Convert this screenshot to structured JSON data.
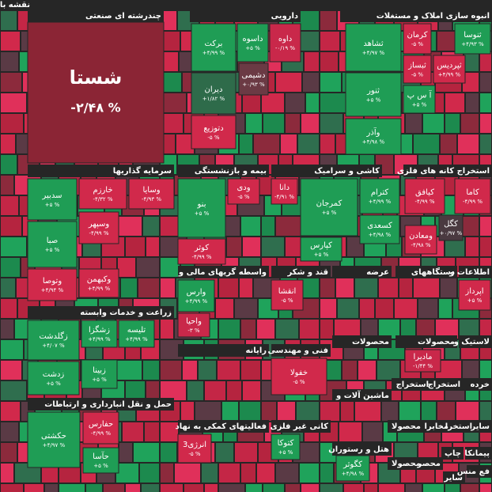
{
  "title": "نقشه بازار",
  "sectors": [
    {
      "name": "چندرشته ای صنعتی",
      "tiles": [
        {
          "symbol": "شستا",
          "change": "-۲/۴۸ %",
          "color": "#8b2535"
        }
      ]
    },
    {
      "name": "دارویی",
      "tiles": [
        {
          "symbol": "برکت",
          "change": "+۴/۹۹ %",
          "color": "#1f9d55"
        },
        {
          "symbol": "داسوه",
          "change": "+۵ %",
          "color": "#1f9d55"
        },
        {
          "symbol": "داوه",
          "change": "-۰/۱۹ %",
          "color": "#c9284a"
        },
        {
          "symbol": "دشیمی",
          "change": "+۰/۹۳ %",
          "color": "#6b3a44"
        },
        {
          "symbol": "دیران",
          "change": "+۱/۸۲ %",
          "color": "#2e6b4a"
        },
        {
          "symbol": "دتوزیع",
          "change": "-۵ %",
          "color": "#d1294b"
        }
      ]
    },
    {
      "name": "انبوه سازی املاک و مستغلات",
      "tiles": [
        {
          "symbol": "ثشاهد",
          "change": "+۴/۹۷ %",
          "color": "#1f9d55"
        },
        {
          "symbol": "کرمان",
          "change": "-۵ %",
          "color": "#d1294b"
        },
        {
          "symbol": "ثنوسا",
          "change": "+۴/۹۳ %",
          "color": "#1f9d55"
        },
        {
          "symbol": "ثبساز",
          "change": "-۵ %",
          "color": "#d1294b"
        },
        {
          "symbol": "ثپردیس",
          "change": "+۴/۹۹ %",
          "color": "#d1294b"
        },
        {
          "symbol": "ثنور",
          "change": "+۵ %",
          "color": "#1f9d55"
        },
        {
          "symbol": "آ س پ",
          "change": "+۵ %",
          "color": "#1f9d55"
        },
        {
          "symbol": "وآذر",
          "change": "+۴/۹۸ %",
          "color": "#1f9d55"
        }
      ]
    },
    {
      "name": "سرمایه گذاریها",
      "tiles": [
        {
          "symbol": "سدبیر",
          "change": "+۵ %",
          "color": "#1f9d55"
        },
        {
          "symbol": "خارزم",
          "change": "-۴/۳۲ %",
          "color": "#d1294b"
        },
        {
          "symbol": "وسایا",
          "change": "-۴/۹۳ %",
          "color": "#d1294b"
        },
        {
          "symbol": "صبا",
          "change": "+۵ %",
          "color": "#1f9d55"
        },
        {
          "symbol": "وسپهر",
          "change": "-۴/۹۹ %",
          "color": "#d1294b"
        },
        {
          "symbol": "وتوصا",
          "change": "+۴/۹۴ %",
          "color": "#d1294b"
        },
        {
          "symbol": "وکبهمن",
          "change": "+۴/۹۹ %",
          "color": "#d1294b"
        }
      ]
    },
    {
      "name": "بیمه و بازنشستگی",
      "tiles": [
        {
          "symbol": "بنو",
          "change": "+۵ %",
          "color": "#1f9d55"
        },
        {
          "symbol": "ودی",
          "change": "-۵ %",
          "color": "#d1294b"
        },
        {
          "symbol": "کوثر",
          "change": "-۴/۹۹ %",
          "color": "#d1294b"
        }
      ]
    },
    {
      "name": "کاشی و سرامیک",
      "tiles": [
        {
          "symbol": "دانا",
          "change": "-۴/۹۱ %",
          "color": "#d1294b"
        },
        {
          "symbol": "کمرجان",
          "change": "+۵ %",
          "color": "#1f9d55"
        },
        {
          "symbol": "کترام",
          "change": "+۴/۹۹ %",
          "color": "#1f9d55"
        },
        {
          "symbol": "کسعدی",
          "change": "+۴/۹۸ %",
          "color": "#1f9d55"
        },
        {
          "symbol": "کپارس",
          "change": "+۵ %",
          "color": "#1f9d55"
        }
      ]
    },
    {
      "name": "استخراج کانه های فلزی",
      "tiles": [
        {
          "symbol": "کیافق",
          "change": "-۴/۹۹ %",
          "color": "#d1294b"
        },
        {
          "symbol": "کاما",
          "change": "-۴/۹۹ %",
          "color": "#d1294b"
        },
        {
          "symbol": "کگل",
          "change": "+۰/۹۷ %",
          "color": "#4a3a40"
        },
        {
          "symbol": "ومعادن",
          "change": "-۴/۹۸ %",
          "color": "#d1294b"
        }
      ]
    },
    {
      "name": "واسطه گریهای مالی و",
      "tiles": [
        {
          "symbol": "وارس",
          "change": "+۴/۹۹ %",
          "color": "#1f9d55"
        },
        {
          "symbol": "واحیا",
          "change": "-۳ %",
          "color": "#c9284a"
        }
      ]
    },
    {
      "name": "قند و شکر",
      "tiles": [
        {
          "symbol": "انقشا",
          "change": "-۵ %",
          "color": "#d1294b"
        }
      ]
    },
    {
      "name": "عرضه",
      "tiles": []
    },
    {
      "name": "دستگاههای",
      "tiles": []
    },
    {
      "name": "اطلاعات و",
      "tiles": [
        {
          "symbol": "اپرداز",
          "change": "+۵ %",
          "color": "#d1294b"
        }
      ]
    },
    {
      "name": "زراعت و خدمات وابسته",
      "tiles": [
        {
          "symbol": "زگلدشت",
          "change": "+۴/۰۷ %",
          "color": "#1f9d55"
        },
        {
          "symbol": "زشگزا",
          "change": "+۴/۹۹ %",
          "color": "#1f9d55"
        },
        {
          "symbol": "تلیسه",
          "change": "+۴/۹۹ %",
          "color": "#1f9d55"
        },
        {
          "symbol": "زدشت",
          "change": "+۵ %",
          "color": "#1f9d55"
        },
        {
          "symbol": "زبینا",
          "change": "+۵ %",
          "color": "#1f9d55"
        }
      ]
    },
    {
      "name": "رایانه",
      "tiles": []
    },
    {
      "name": "فنی و مهندسی",
      "tiles": [
        {
          "symbol": "خفولا",
          "change": "-۵ %",
          "color": "#d1294b"
        }
      ]
    },
    {
      "name": "محصولات",
      "tiles": []
    },
    {
      "name": "محصولات",
      "tiles": [
        {
          "symbol": "مادیرا",
          "change": "-۱/۴۴ %",
          "color": "#c9284a"
        }
      ]
    },
    {
      "name": "لاستیک و",
      "tiles": []
    },
    {
      "name": "ماشین آلات و",
      "tiles": []
    },
    {
      "name": "استخراج",
      "tiles": []
    },
    {
      "name": "استخراج",
      "tiles": []
    },
    {
      "name": "خرده",
      "tiles": []
    },
    {
      "name": "حمل و نقل انبارداری و ارتباطات",
      "tiles": [
        {
          "symbol": "حکشتی",
          "change": "+۴/۹۷ %",
          "color": "#1f9d55"
        },
        {
          "symbol": "حفارس",
          "change": "-۴/۹۹ %",
          "color": "#d1294b"
        },
        {
          "symbol": "حآسا",
          "change": "+۵ %",
          "color": "#1f9d55"
        }
      ]
    },
    {
      "name": "فعالیتهای کمکی به نهاد",
      "tiles": [
        {
          "symbol": "انرژی3",
          "change": "-۵ %",
          "color": "#d1294b"
        }
      ]
    },
    {
      "name": "کانی غیر فلزی",
      "tiles": [
        {
          "symbol": "کتوکا",
          "change": "+۵ %",
          "color": "#1f9d55"
        }
      ]
    },
    {
      "name": "هتل و رستوران",
      "tiles": [
        {
          "symbol": "کگوثر",
          "change": "+۴/۹۸ %",
          "color": "#1f9d55"
        }
      ]
    },
    {
      "name": "محصولا",
      "tiles": []
    },
    {
      "name": "مخابرا",
      "tiles": []
    },
    {
      "name": "استخرا",
      "tiles": []
    },
    {
      "name": "سایر",
      "tiles": []
    },
    {
      "name": "چاپ",
      "tiles": []
    },
    {
      "name": "پیمانکا",
      "tiles": []
    },
    {
      "name": "محصولا",
      "tiles": []
    },
    {
      "name": "محصر",
      "tiles": []
    },
    {
      "name": "سایر",
      "tiles": []
    },
    {
      "name": "فع منس",
      "tiles": []
    }
  ]
}
